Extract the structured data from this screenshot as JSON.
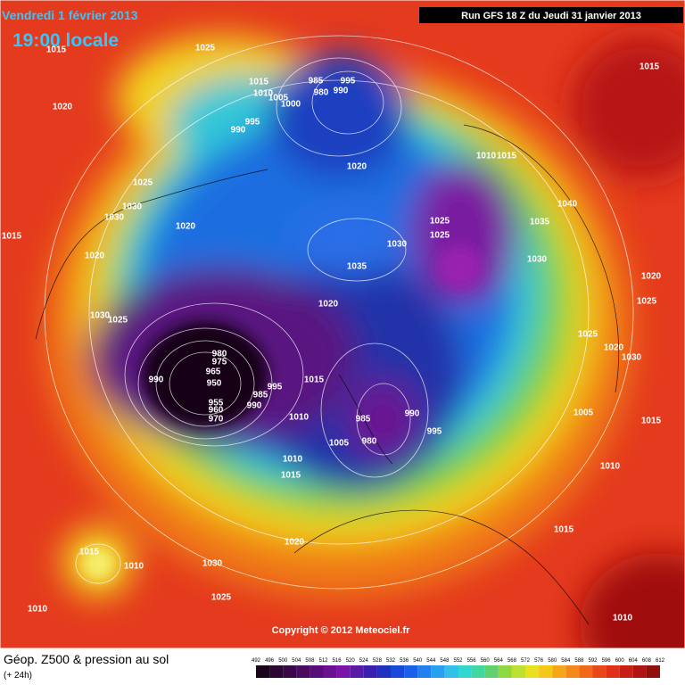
{
  "header": {
    "date": "Vendredi 1 février 2013",
    "time": "19:00 locale",
    "run": "Run GFS 18 Z du Jeudi 31 janvier 2013"
  },
  "map": {
    "copyright": "Copyright © 2012 Meteociel.fr",
    "isobar_labels": [
      "1025",
      "1015",
      "1010",
      "1005",
      "1000",
      "985",
      "995",
      "990",
      "980",
      "995",
      "990",
      "1020",
      "1025",
      "1030",
      "1030",
      "1020",
      "1015",
      "1020",
      "1030",
      "1025",
      "1020",
      "1010",
      "1015",
      "1040",
      "1035",
      "1025",
      "1025",
      "1030",
      "1035",
      "1030",
      "1020",
      "980",
      "975",
      "965",
      "950",
      "990",
      "985",
      "995",
      "990",
      "955",
      "960",
      "970",
      "1015",
      "1010",
      "985",
      "990",
      "995",
      "980",
      "1005",
      "1010",
      "1015",
      "1020",
      "1015",
      "1010",
      "1030",
      "1025",
      "1010",
      "1015",
      "1020",
      "1025",
      "1025",
      "1020",
      "1030",
      "1005",
      "1015",
      "1010",
      "1015",
      "1010",
      "1015"
    ]
  },
  "footer": {
    "product": "Géop. Z500 & pression au sol",
    "lead": "(+ 24h)",
    "scale": [
      "492",
      "496",
      "500",
      "504",
      "508",
      "512",
      "516",
      "520",
      "524",
      "528",
      "532",
      "536",
      "540",
      "544",
      "548",
      "552",
      "556",
      "560",
      "564",
      "568",
      "572",
      "576",
      "580",
      "584",
      "588",
      "592",
      "596",
      "600",
      "604",
      "608",
      "612"
    ]
  }
}
